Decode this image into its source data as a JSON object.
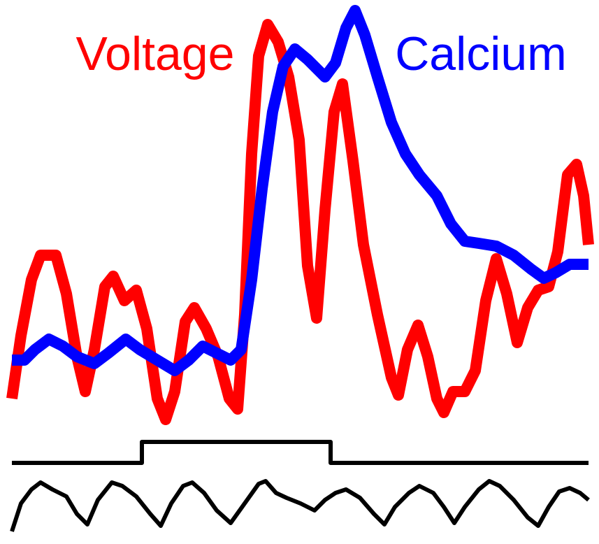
{
  "chart_data": [
    {
      "type": "line",
      "xlim": [
        0,
        825
      ],
      "ylim": [
        0,
        600
      ],
      "series": [
        {
          "name": "Voltage",
          "color": "#ff0000",
          "x": [
            0,
            13,
            28,
            41,
            63,
            78,
            93,
            105,
            118,
            133,
            145,
            161,
            178,
            193,
            208,
            220,
            233,
            248,
            261,
            278,
            295,
            311,
            323,
            333,
            343,
            353,
            366,
            381,
            396,
            411,
            423,
            436,
            448,
            461,
            473,
            488,
            503,
            523,
            543,
            553,
            566,
            581,
            595,
            608,
            618,
            631,
            648,
            663,
            678,
            693,
            708,
            723,
            738,
            753,
            768,
            781,
            795,
            808,
            818,
            825
          ],
          "values": [
            40,
            130,
            210,
            245,
            245,
            190,
            100,
            50,
            110,
            200,
            215,
            180,
            195,
            140,
            40,
            10,
            50,
            150,
            170,
            140,
            100,
            40,
            25,
            160,
            390,
            530,
            575,
            550,
            500,
            410,
            230,
            155,
            310,
            450,
            490,
            380,
            260,
            160,
            70,
            45,
            110,
            145,
            100,
            40,
            20,
            50,
            50,
            80,
            180,
            240,
            190,
            120,
            170,
            195,
            200,
            250,
            360,
            375,
            330,
            260
          ]
        },
        {
          "name": "Calcium",
          "color": "#0000ff",
          "x": [
            0,
            18,
            33,
            53,
            73,
            93,
            118,
            138,
            163,
            183,
            208,
            233,
            253,
            273,
            293,
            313,
            328,
            343,
            358,
            373,
            388,
            405,
            423,
            448,
            463,
            478,
            491,
            505,
            523,
            543,
            563,
            583,
            608,
            628,
            648,
            668,
            693,
            718,
            743,
            761,
            778,
            798,
            825
          ],
          "values": [
            95,
            95,
            110,
            125,
            115,
            100,
            90,
            105,
            125,
            110,
            95,
            80,
            95,
            115,
            105,
            95,
            110,
            210,
            340,
            450,
            515,
            540,
            525,
            500,
            520,
            570,
            595,
            560,
            500,
            435,
            390,
            360,
            330,
            290,
            265,
            262,
            258,
            245,
            225,
            212,
            220,
            232,
            232
          ]
        }
      ]
    },
    {
      "type": "line",
      "xlim": [
        0,
        825
      ],
      "ylim": [
        0,
        30
      ],
      "series": [
        {
          "color": "#000000",
          "x": [
            0,
            186,
            186,
            456,
            456,
            825
          ],
          "values": [
            0,
            0,
            30,
            30,
            0,
            0
          ]
        }
      ]
    },
    {
      "type": "line",
      "xlim": [
        0,
        825
      ],
      "ylim": [
        0,
        72
      ],
      "series": [
        {
          "color": "#000000",
          "x": [
            0,
            13,
            28,
            41,
            58,
            78,
            93,
            108,
            123,
            143,
            158,
            178,
            198,
            213,
            228,
            245,
            258,
            275,
            293,
            313,
            333,
            353,
            363,
            378,
            393,
            413,
            433,
            448,
            463,
            478,
            498,
            518,
            533,
            548,
            568,
            583,
            603,
            618,
            633,
            648,
            668,
            683,
            698,
            718,
            738,
            753,
            768,
            783,
            798,
            813,
            825
          ],
          "values": [
            0,
            40,
            60,
            70,
            60,
            50,
            25,
            10,
            45,
            70,
            65,
            50,
            25,
            8,
            40,
            65,
            70,
            55,
            30,
            12,
            40,
            68,
            72,
            55,
            48,
            40,
            30,
            45,
            55,
            60,
            48,
            25,
            10,
            35,
            55,
            65,
            55,
            35,
            12,
            35,
            60,
            72,
            65,
            45,
            20,
            8,
            35,
            57,
            62,
            55,
            45
          ]
        }
      ]
    }
  ]
}
